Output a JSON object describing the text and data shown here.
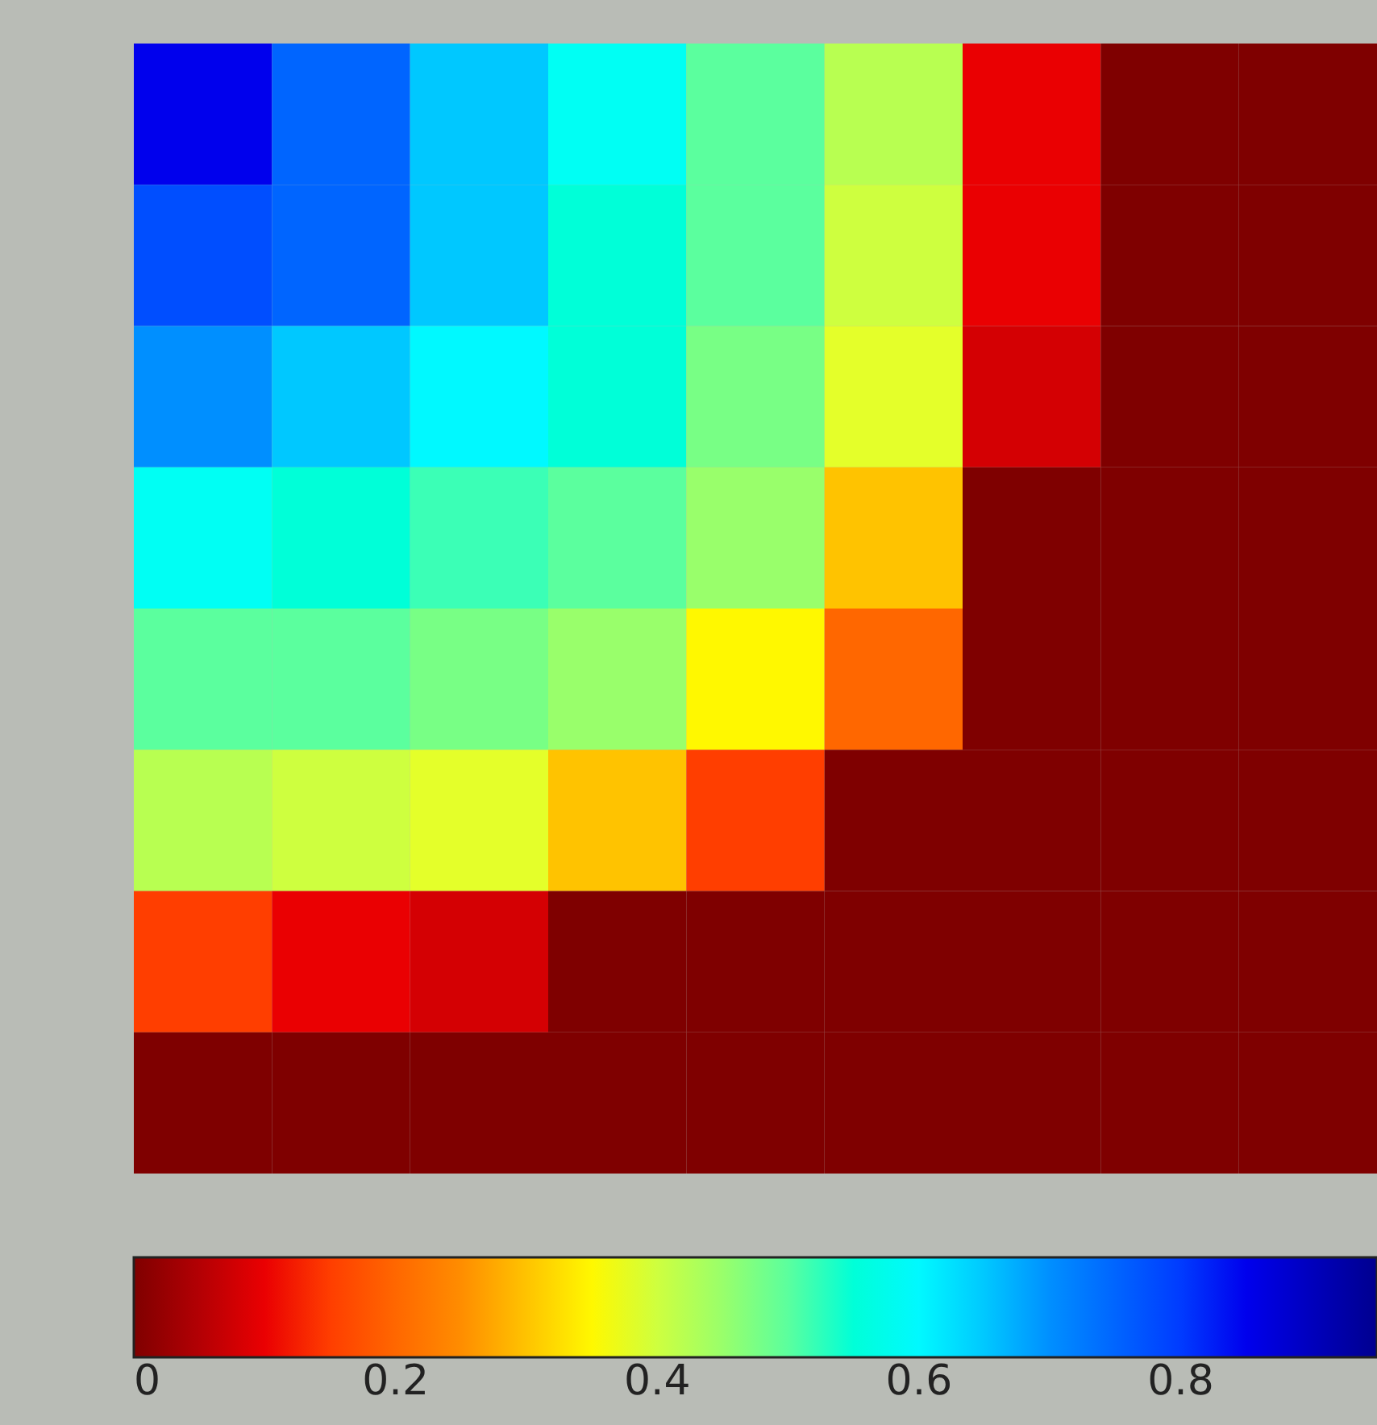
{
  "chart_data": {
    "type": "heatmap",
    "categories": [
      null,
      null,
      null,
      null,
      null,
      null,
      null,
      null,
      null
    ],
    "y_categories": [
      null,
      null,
      null,
      null,
      null,
      null,
      null,
      null
    ],
    "cells": [
      [
        0.85,
        0.75,
        0.65,
        0.58,
        0.5,
        0.42,
        0.1,
        0,
        0
      ],
      [
        0.78,
        0.75,
        0.65,
        0.55,
        0.5,
        0.4,
        0.1,
        0,
        0
      ],
      [
        0.7,
        0.65,
        0.6,
        0.55,
        0.48,
        0.38,
        0.08,
        0,
        0
      ],
      [
        0.58,
        0.55,
        0.52,
        0.5,
        0.45,
        0.3,
        0,
        0,
        0
      ],
      [
        0.5,
        0.5,
        0.48,
        0.45,
        0.35,
        0.2,
        0,
        0,
        0
      ],
      [
        0.42,
        0.4,
        0.38,
        0.3,
        0.15,
        0,
        0,
        0,
        0
      ],
      [
        0.15,
        0.1,
        0.08,
        0,
        0,
        0,
        0,
        0,
        0
      ],
      [
        0,
        0,
        0,
        0,
        0,
        0,
        0,
        0,
        0
      ]
    ],
    "clim": [
      0,
      0.95
    ],
    "cticks": [
      0,
      0.2,
      0.4,
      0.6,
      0.8
    ]
  }
}
